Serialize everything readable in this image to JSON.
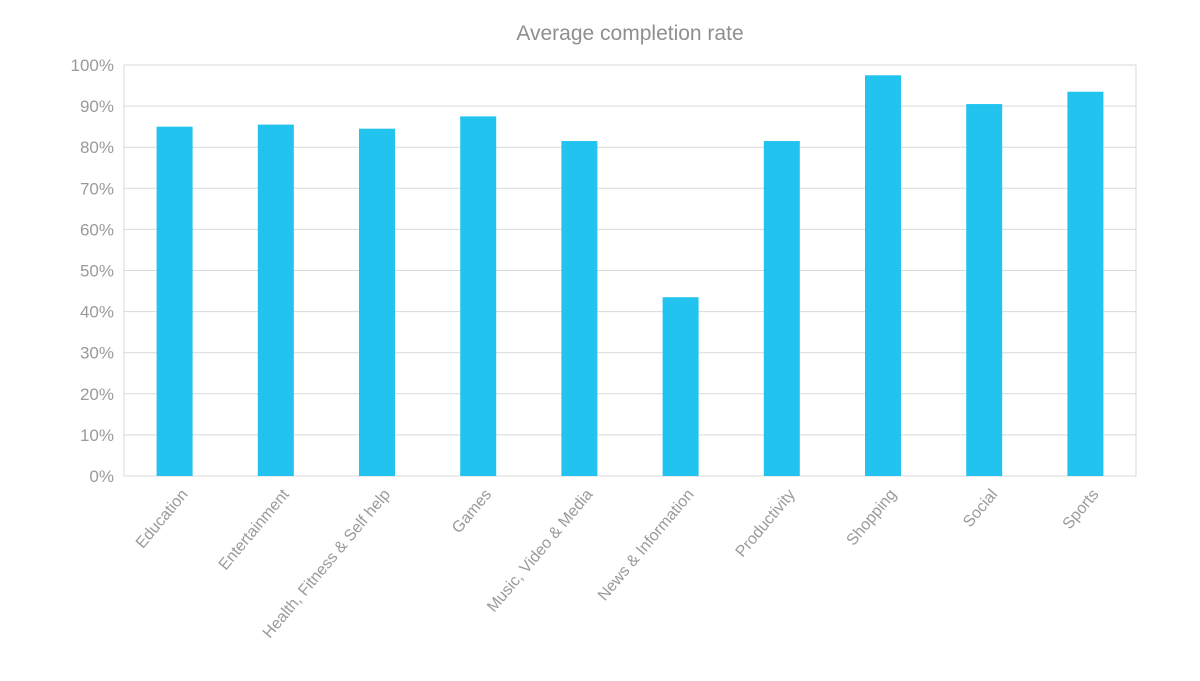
{
  "chart_data": {
    "type": "bar",
    "title": "Average completion rate",
    "xlabel": "",
    "ylabel": "",
    "categories": [
      "Education",
      "Entertainment",
      "Health, Fitness & Self help",
      "Games",
      "Music, Video & Media",
      "News & Information",
      "Productivity",
      "Shopping",
      "Social",
      "Sports"
    ],
    "values": [
      85,
      85.5,
      84.5,
      87.5,
      81.5,
      43.5,
      81.5,
      97.5,
      90.5,
      93.5
    ],
    "ylim": [
      0,
      100
    ],
    "yticks": [
      0,
      10,
      20,
      30,
      40,
      50,
      60,
      70,
      80,
      90,
      100
    ],
    "ytick_labels": [
      "0%",
      "10%",
      "20%",
      "30%",
      "40%",
      "50%",
      "60%",
      "70%",
      "80%",
      "90%",
      "100%"
    ],
    "grid": true,
    "legend": "none",
    "colors": {
      "bar": "#22c3ef",
      "grid": "#d9d9d9",
      "text": "#9a9a9a"
    }
  }
}
